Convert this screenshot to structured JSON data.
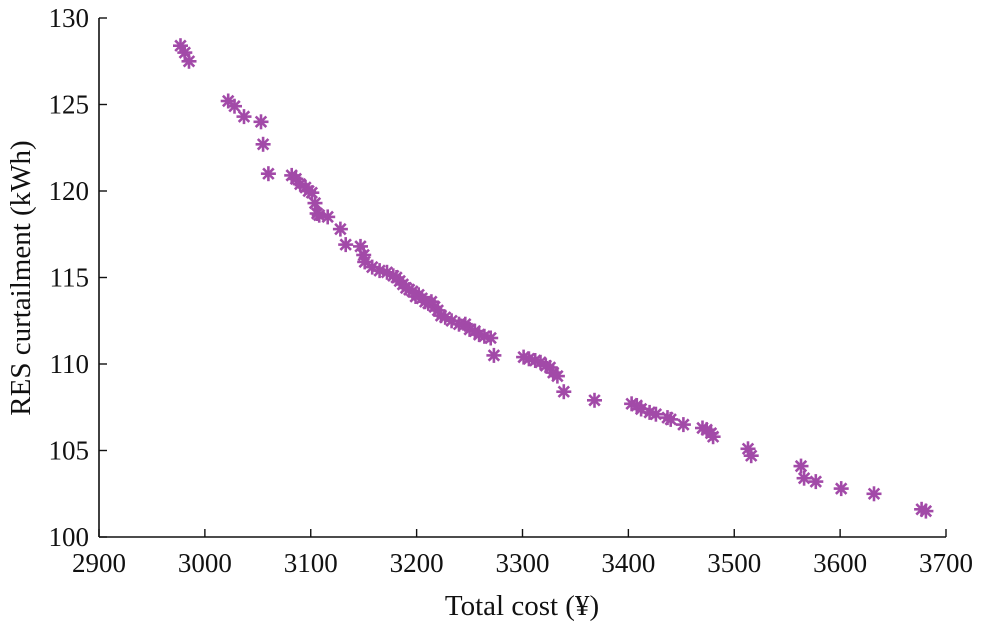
{
  "chart_data": {
    "type": "scatter",
    "xlabel": "Total cost (¥)",
    "ylabel": "RES curtailment (kWh)",
    "xlim": [
      2900,
      3700
    ],
    "ylim": [
      100,
      130
    ],
    "xticks": [
      2900,
      3000,
      3100,
      3200,
      3300,
      3400,
      3500,
      3600,
      3700
    ],
    "yticks": [
      100,
      105,
      110,
      115,
      120,
      125,
      130
    ],
    "grid": false,
    "marker": "asterisk",
    "marker_color": "#a24aa8",
    "series": [
      {
        "x": [
          2977,
          2981,
          2985,
          3022,
          3028,
          3037,
          3053,
          3055,
          3060,
          3082,
          3086,
          3090,
          3095,
          3098,
          3101,
          3104,
          3106,
          3108,
          3116,
          3128,
          3133,
          3147,
          3150,
          3151,
          3158,
          3165,
          3172,
          3178,
          3181,
          3184,
          3187,
          3190,
          3193,
          3196,
          3199,
          3202,
          3205,
          3208,
          3211,
          3214,
          3217,
          3220,
          3223,
          3227,
          3233,
          3240,
          3246,
          3250,
          3255,
          3259,
          3264,
          3270,
          3273,
          3301,
          3306,
          3312,
          3317,
          3322,
          3326,
          3329,
          3333,
          3339,
          3368,
          3403,
          3408,
          3412,
          3420,
          3426,
          3437,
          3440,
          3452,
          3470,
          3474,
          3478,
          3480,
          3513,
          3516,
          3563,
          3566,
          3577,
          3601,
          3632,
          3677,
          3681
        ],
        "y": [
          128.4,
          128.0,
          127.5,
          125.2,
          124.9,
          124.3,
          124.0,
          122.7,
          121.0,
          120.9,
          120.7,
          120.4,
          120.2,
          120.0,
          119.9,
          119.3,
          118.7,
          118.6,
          118.5,
          117.8,
          116.9,
          116.8,
          116.3,
          115.9,
          115.6,
          115.4,
          115.3,
          115.1,
          115.0,
          114.8,
          114.6,
          114.4,
          114.3,
          114.2,
          113.9,
          114.0,
          113.8,
          113.6,
          113.5,
          113.6,
          113.3,
          113.1,
          112.8,
          112.7,
          112.5,
          112.3,
          112.3,
          112.0,
          111.9,
          111.7,
          111.6,
          111.5,
          110.5,
          110.4,
          110.3,
          110.2,
          110.1,
          109.9,
          109.8,
          109.5,
          109.3,
          108.4,
          107.9,
          107.7,
          107.6,
          107.4,
          107.2,
          107.1,
          106.9,
          106.8,
          106.5,
          106.3,
          106.2,
          106.0,
          105.8,
          105.1,
          104.7,
          104.1,
          103.4,
          103.2,
          102.8,
          102.5,
          101.6,
          101.5
        ]
      }
    ]
  }
}
